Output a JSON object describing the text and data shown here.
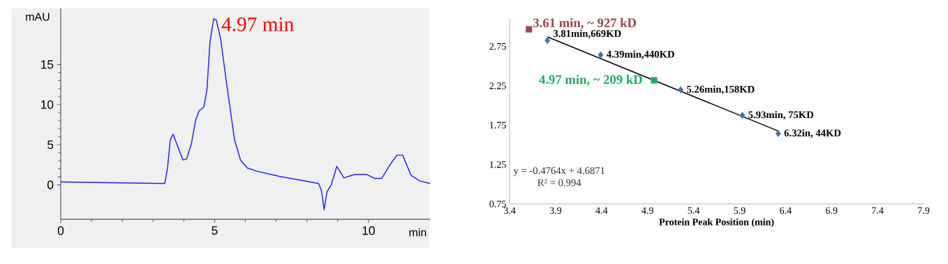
{
  "chart_data": [
    {
      "type": "line",
      "xlabel": "min",
      "ylabel": "mAU",
      "color": "#1f1fff",
      "x": [
        0,
        3.38,
        3.47,
        3.56,
        3.65,
        3.79,
        3.97,
        4.09,
        4.25,
        4.38,
        4.49,
        4.65,
        4.75,
        4.85,
        4.97,
        5.06,
        5.2,
        5.38,
        5.56,
        5.65,
        5.84,
        6.06,
        6.38,
        7.1,
        8.02,
        8.38,
        8.47,
        8.56,
        8.65,
        8.79,
        8.97,
        9.2,
        9.56,
        9.93,
        10.2,
        10.43,
        10.75,
        10.93,
        11.11,
        11.38,
        11.65,
        12.0
      ],
      "values": [
        0.35,
        0.17,
        2.1,
        5.6,
        6.3,
        4.9,
        3.1,
        3.2,
        5.2,
        8.0,
        9.2,
        9.7,
        11.8,
        17.8,
        20.7,
        20.5,
        18.1,
        12.9,
        8.0,
        5.6,
        3.1,
        2.1,
        1.7,
        1.05,
        0.42,
        0.17,
        -0.7,
        -3.1,
        -0.9,
        0,
        2.3,
        0.87,
        1.3,
        1.3,
        0.8,
        0.8,
        2.8,
        3.7,
        3.7,
        1.2,
        0.5,
        0.17
      ],
      "xlim": [
        0,
        12
      ],
      "ylim": [
        -4.3,
        22
      ],
      "xticks": [
        0,
        5,
        10
      ],
      "yticks": [
        0,
        5,
        10,
        15
      ],
      "annotations": [
        {
          "text": "4.97 min",
          "x": 4.97,
          "y": 20.7
        }
      ]
    },
    {
      "type": "scatter",
      "xlabel": "Protein Peak Position (min)",
      "xlim": [
        3.4,
        7.9
      ],
      "ylim": [
        0.75,
        3.1
      ],
      "xticks": [
        3.4,
        3.9,
        4.4,
        4.9,
        5.4,
        5.9,
        6.4,
        6.9,
        7.4,
        7.9
      ],
      "yticks": [
        0.75,
        1.25,
        1.75,
        2.25,
        2.75
      ],
      "series": [
        {
          "color": "#4572a7",
          "marker": "diamond",
          "x": [
            3.81,
            4.39,
            5.26,
            5.93,
            6.32
          ],
          "values": [
            2.825,
            2.643,
            2.199,
            1.875,
            1.643
          ],
          "value_labels": [
            "3.81min,669KD",
            "4.39min,440KD",
            "5.26min,158KD",
            "5.93min, 75KD",
            "6.32in, 44KD"
          ]
        },
        {
          "type": "line",
          "color": "#000000",
          "x": [
            3.81,
            6.32
          ],
          "values": [
            2.872,
            1.676
          ]
        },
        {
          "color": "#a0404a",
          "marker": "square",
          "x": [
            3.61
          ],
          "values": [
            2.967
          ],
          "value_labels": [
            "3.61 min, ~ 927 kD"
          ]
        },
        {
          "color": "#20a860",
          "marker": "square",
          "x": [
            4.97
          ],
          "values": [
            2.32
          ],
          "value_labels": [
            "4.97 min, ~ 209 kD"
          ]
        }
      ],
      "annotations": [
        "y = -0.4764x + 4.6871",
        "R² = 0.994"
      ]
    }
  ]
}
